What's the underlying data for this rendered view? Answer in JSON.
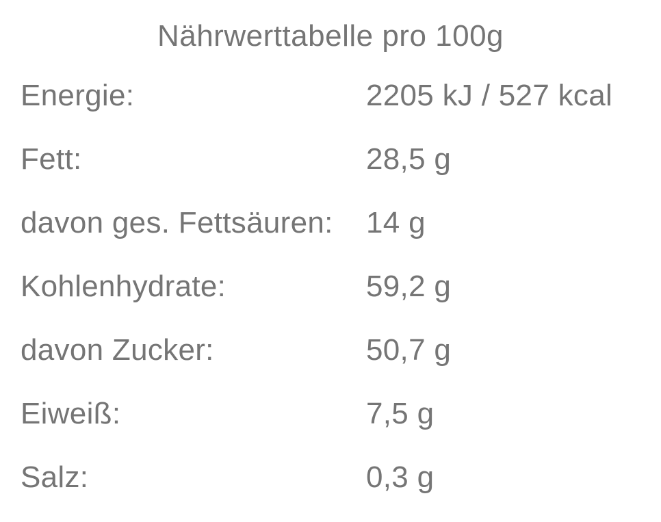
{
  "title": "Nährwerttabelle pro 100g",
  "colors": {
    "background": "#ffffff",
    "text": "#757575"
  },
  "table": {
    "rows": [
      {
        "label": "Energie:",
        "value": "2205 kJ / 527 kcal"
      },
      {
        "label": "Fett:",
        "value": "28,5 g"
      },
      {
        "label": "davon ges. Fettsäuren:",
        "value": "14 g"
      },
      {
        "label": "Kohlenhydrate:",
        "value": "59,2 g"
      },
      {
        "label": "davon Zucker:",
        "value": "50,7 g"
      },
      {
        "label": "Eiweiß:",
        "value": "7,5 g"
      },
      {
        "label": "Salz:",
        "value": "0,3 g"
      }
    ]
  }
}
